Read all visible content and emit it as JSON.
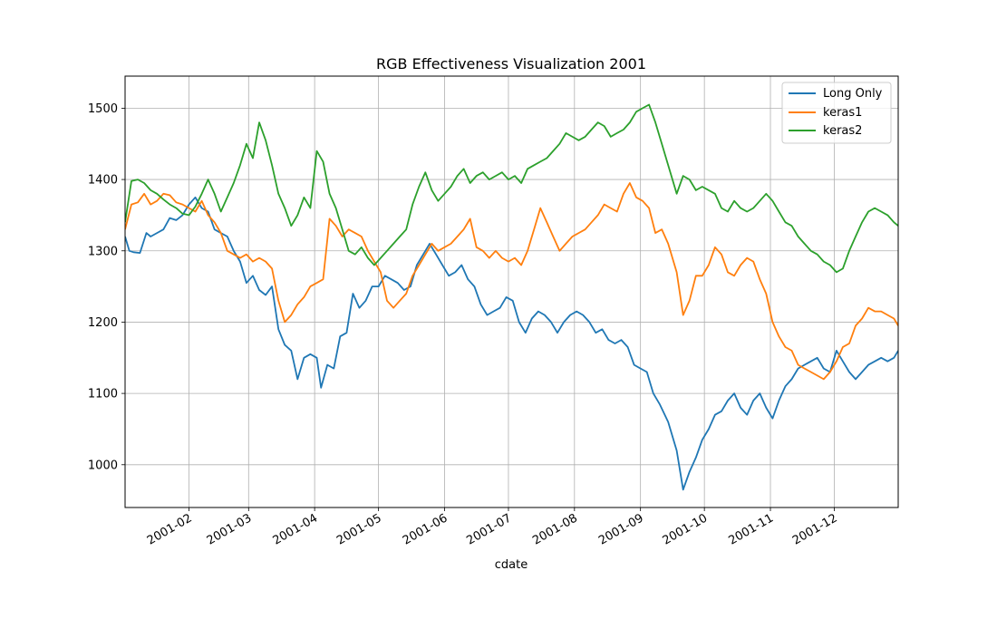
{
  "chart_data": {
    "type": "line",
    "title": "RGB Effectiveness Visualization 2001",
    "xlabel": "cdate",
    "ylabel": "",
    "x_type": "date",
    "xlim": [
      "2001-01-02",
      "2001-12-31"
    ],
    "ylim": [
      940,
      1545
    ],
    "grid": true,
    "legend_position": "top-right",
    "x_ticks": [
      "2001-02-01",
      "2001-03-01",
      "2001-04-01",
      "2001-05-01",
      "2001-06-01",
      "2001-07-01",
      "2001-08-01",
      "2001-09-01",
      "2001-10-01",
      "2001-11-01",
      "2001-12-01"
    ],
    "x_tick_labels": [
      "2001-02",
      "2001-03",
      "2001-04",
      "2001-05",
      "2001-06",
      "2001-07",
      "2001-08",
      "2001-09",
      "2001-10",
      "2001-11",
      "2001-12"
    ],
    "y_ticks": [
      1000,
      1100,
      1200,
      1300,
      1400,
      1500
    ],
    "y_tick_labels": [
      "1000",
      "1100",
      "1200",
      "1300",
      "1400",
      "1500"
    ],
    "series": [
      {
        "name": "Long Only",
        "color": "#1f77b4",
        "x": [
          "2001-01-02",
          "2001-01-04",
          "2001-01-06",
          "2001-01-09",
          "2001-01-12",
          "2001-01-14",
          "2001-01-17",
          "2001-01-20",
          "2001-01-23",
          "2001-01-26",
          "2001-01-29",
          "2001-02-01",
          "2001-02-04",
          "2001-02-07",
          "2001-02-10",
          "2001-02-13",
          "2001-02-16",
          "2001-02-19",
          "2001-02-22",
          "2001-02-25",
          "2001-02-28",
          "2001-03-03",
          "2001-03-06",
          "2001-03-09",
          "2001-03-12",
          "2001-03-15",
          "2001-03-18",
          "2001-03-21",
          "2001-03-24",
          "2001-03-27",
          "2001-03-30",
          "2001-04-02",
          "2001-04-04",
          "2001-04-07",
          "2001-04-10",
          "2001-04-13",
          "2001-04-16",
          "2001-04-19",
          "2001-04-22",
          "2001-04-25",
          "2001-04-28",
          "2001-05-01",
          "2001-05-04",
          "2001-05-07",
          "2001-05-10",
          "2001-05-13",
          "2001-05-16",
          "2001-05-19",
          "2001-05-22",
          "2001-05-25",
          "2001-05-28",
          "2001-05-31",
          "2001-06-03",
          "2001-06-06",
          "2001-06-09",
          "2001-06-12",
          "2001-06-15",
          "2001-06-18",
          "2001-06-21",
          "2001-06-24",
          "2001-06-27",
          "2001-06-30",
          "2001-07-03",
          "2001-07-06",
          "2001-07-09",
          "2001-07-12",
          "2001-07-15",
          "2001-07-18",
          "2001-07-21",
          "2001-07-24",
          "2001-07-27",
          "2001-07-30",
          "2001-08-02",
          "2001-08-05",
          "2001-08-08",
          "2001-08-11",
          "2001-08-14",
          "2001-08-17",
          "2001-08-20",
          "2001-08-23",
          "2001-08-26",
          "2001-08-29",
          "2001-09-01",
          "2001-09-04",
          "2001-09-07",
          "2001-09-10",
          "2001-09-14",
          "2001-09-18",
          "2001-09-21",
          "2001-09-24",
          "2001-09-27",
          "2001-09-30",
          "2001-10-03",
          "2001-10-06",
          "2001-10-09",
          "2001-10-12",
          "2001-10-15",
          "2001-10-18",
          "2001-10-21",
          "2001-10-24",
          "2001-10-27",
          "2001-10-30",
          "2001-11-02",
          "2001-11-05",
          "2001-11-08",
          "2001-11-11",
          "2001-11-14",
          "2001-11-17",
          "2001-11-20",
          "2001-11-23",
          "2001-11-26",
          "2001-11-29",
          "2001-12-02",
          "2001-12-05",
          "2001-12-08",
          "2001-12-11",
          "2001-12-14",
          "2001-12-17",
          "2001-12-20",
          "2001-12-23",
          "2001-12-26",
          "2001-12-29",
          "2001-12-31"
        ],
        "y": [
          1320,
          1300,
          1298,
          1297,
          1325,
          1320,
          1325,
          1330,
          1346,
          1343,
          1350,
          1365,
          1375,
          1360,
          1355,
          1330,
          1325,
          1320,
          1300,
          1285,
          1255,
          1265,
          1245,
          1238,
          1250,
          1190,
          1168,
          1160,
          1120,
          1150,
          1155,
          1150,
          1108,
          1140,
          1135,
          1180,
          1185,
          1240,
          1220,
          1230,
          1250,
          1250,
          1265,
          1260,
          1255,
          1245,
          1250,
          1280,
          1295,
          1310,
          1295,
          1280,
          1265,
          1270,
          1280,
          1260,
          1250,
          1225,
          1210,
          1215,
          1220,
          1235,
          1230,
          1200,
          1185,
          1205,
          1215,
          1210,
          1200,
          1185,
          1200,
          1210,
          1215,
          1210,
          1200,
          1185,
          1190,
          1175,
          1170,
          1175,
          1165,
          1140,
          1135,
          1130,
          1100,
          1085,
          1060,
          1020,
          965,
          990,
          1010,
          1035,
          1050,
          1070,
          1075,
          1090,
          1100,
          1080,
          1070,
          1090,
          1100,
          1080,
          1065,
          1090,
          1110,
          1120,
          1135,
          1140,
          1145,
          1150,
          1135,
          1130,
          1160,
          1145,
          1130,
          1120,
          1130,
          1140,
          1145,
          1150,
          1145,
          1150,
          1160
        ]
      },
      {
        "name": "keras1",
        "color": "#ff7f0e",
        "x": [
          "2001-01-02",
          "2001-01-05",
          "2001-01-08",
          "2001-01-11",
          "2001-01-14",
          "2001-01-17",
          "2001-01-20",
          "2001-01-23",
          "2001-01-26",
          "2001-01-29",
          "2001-02-01",
          "2001-02-04",
          "2001-02-07",
          "2001-02-10",
          "2001-02-13",
          "2001-02-16",
          "2001-02-19",
          "2001-02-22",
          "2001-02-25",
          "2001-02-28",
          "2001-03-03",
          "2001-03-06",
          "2001-03-09",
          "2001-03-12",
          "2001-03-15",
          "2001-03-18",
          "2001-03-21",
          "2001-03-24",
          "2001-03-27",
          "2001-03-30",
          "2001-04-02",
          "2001-04-05",
          "2001-04-08",
          "2001-04-11",
          "2001-04-14",
          "2001-04-17",
          "2001-04-20",
          "2001-04-23",
          "2001-04-26",
          "2001-04-29",
          "2001-05-02",
          "2001-05-05",
          "2001-05-08",
          "2001-05-11",
          "2001-05-14",
          "2001-05-17",
          "2001-05-20",
          "2001-05-23",
          "2001-05-26",
          "2001-05-29",
          "2001-06-01",
          "2001-06-04",
          "2001-06-07",
          "2001-06-10",
          "2001-06-13",
          "2001-06-16",
          "2001-06-19",
          "2001-06-22",
          "2001-06-25",
          "2001-06-28",
          "2001-07-01",
          "2001-07-04",
          "2001-07-07",
          "2001-07-10",
          "2001-07-13",
          "2001-07-16",
          "2001-07-19",
          "2001-07-22",
          "2001-07-25",
          "2001-07-28",
          "2001-07-31",
          "2001-08-03",
          "2001-08-06",
          "2001-08-09",
          "2001-08-12",
          "2001-08-15",
          "2001-08-18",
          "2001-08-21",
          "2001-08-24",
          "2001-08-27",
          "2001-08-30",
          "2001-09-02",
          "2001-09-05",
          "2001-09-08",
          "2001-09-11",
          "2001-09-14",
          "2001-09-18",
          "2001-09-21",
          "2001-09-24",
          "2001-09-27",
          "2001-09-30",
          "2001-10-03",
          "2001-10-06",
          "2001-10-09",
          "2001-10-12",
          "2001-10-15",
          "2001-10-18",
          "2001-10-21",
          "2001-10-24",
          "2001-10-27",
          "2001-10-30",
          "2001-11-02",
          "2001-11-05",
          "2001-11-08",
          "2001-11-11",
          "2001-11-14",
          "2001-11-17",
          "2001-11-20",
          "2001-11-23",
          "2001-11-26",
          "2001-11-29",
          "2001-12-02",
          "2001-12-05",
          "2001-12-08",
          "2001-12-11",
          "2001-12-14",
          "2001-12-17",
          "2001-12-20",
          "2001-12-23",
          "2001-12-26",
          "2001-12-29",
          "2001-12-31"
        ],
        "y": [
          1330,
          1365,
          1368,
          1380,
          1365,
          1370,
          1380,
          1378,
          1368,
          1365,
          1360,
          1355,
          1370,
          1350,
          1340,
          1325,
          1300,
          1295,
          1290,
          1295,
          1285,
          1290,
          1285,
          1275,
          1230,
          1200,
          1210,
          1225,
          1235,
          1250,
          1255,
          1260,
          1345,
          1335,
          1320,
          1330,
          1325,
          1320,
          1300,
          1285,
          1270,
          1230,
          1220,
          1230,
          1240,
          1265,
          1280,
          1295,
          1310,
          1300,
          1305,
          1310,
          1320,
          1330,
          1345,
          1305,
          1300,
          1290,
          1300,
          1290,
          1285,
          1290,
          1280,
          1300,
          1330,
          1360,
          1340,
          1320,
          1300,
          1310,
          1320,
          1325,
          1330,
          1340,
          1350,
          1365,
          1360,
          1355,
          1380,
          1395,
          1375,
          1370,
          1360,
          1325,
          1330,
          1310,
          1270,
          1210,
          1230,
          1265,
          1265,
          1280,
          1305,
          1295,
          1270,
          1265,
          1280,
          1290,
          1285,
          1260,
          1240,
          1200,
          1180,
          1165,
          1160,
          1140,
          1135,
          1130,
          1125,
          1120,
          1130,
          1145,
          1165,
          1170,
          1195,
          1205,
          1220,
          1215,
          1215,
          1210,
          1205,
          1195
        ]
      },
      {
        "name": "keras2",
        "color": "#2ca02c",
        "x": [
          "2001-01-02",
          "2001-01-05",
          "2001-01-08",
          "2001-01-11",
          "2001-01-14",
          "2001-01-17",
          "2001-01-20",
          "2001-01-23",
          "2001-01-26",
          "2001-01-29",
          "2001-02-01",
          "2001-02-04",
          "2001-02-07",
          "2001-02-10",
          "2001-02-13",
          "2001-02-16",
          "2001-02-19",
          "2001-02-22",
          "2001-02-25",
          "2001-02-28",
          "2001-03-03",
          "2001-03-06",
          "2001-03-09",
          "2001-03-12",
          "2001-03-15",
          "2001-03-18",
          "2001-03-21",
          "2001-03-24",
          "2001-03-27",
          "2001-03-30",
          "2001-04-02",
          "2001-04-05",
          "2001-04-08",
          "2001-04-11",
          "2001-04-14",
          "2001-04-17",
          "2001-04-20",
          "2001-04-23",
          "2001-04-26",
          "2001-04-29",
          "2001-05-02",
          "2001-05-05",
          "2001-05-08",
          "2001-05-11",
          "2001-05-14",
          "2001-05-17",
          "2001-05-20",
          "2001-05-23",
          "2001-05-26",
          "2001-05-29",
          "2001-06-01",
          "2001-06-04",
          "2001-06-07",
          "2001-06-10",
          "2001-06-13",
          "2001-06-16",
          "2001-06-19",
          "2001-06-22",
          "2001-06-25",
          "2001-06-28",
          "2001-07-01",
          "2001-07-04",
          "2001-07-07",
          "2001-07-10",
          "2001-07-13",
          "2001-07-16",
          "2001-07-19",
          "2001-07-22",
          "2001-07-25",
          "2001-07-28",
          "2001-07-31",
          "2001-08-03",
          "2001-08-06",
          "2001-08-09",
          "2001-08-12",
          "2001-08-15",
          "2001-08-18",
          "2001-08-21",
          "2001-08-24",
          "2001-08-27",
          "2001-08-30",
          "2001-09-02",
          "2001-09-05",
          "2001-09-08",
          "2001-09-11",
          "2001-09-14",
          "2001-09-18",
          "2001-09-21",
          "2001-09-24",
          "2001-09-27",
          "2001-09-30",
          "2001-10-03",
          "2001-10-06",
          "2001-10-09",
          "2001-10-12",
          "2001-10-15",
          "2001-10-18",
          "2001-10-21",
          "2001-10-24",
          "2001-10-27",
          "2001-10-30",
          "2001-11-02",
          "2001-11-05",
          "2001-11-08",
          "2001-11-11",
          "2001-11-14",
          "2001-11-17",
          "2001-11-20",
          "2001-11-23",
          "2001-11-26",
          "2001-11-29",
          "2001-12-02",
          "2001-12-05",
          "2001-12-08",
          "2001-12-11",
          "2001-12-14",
          "2001-12-17",
          "2001-12-20",
          "2001-12-23",
          "2001-12-26",
          "2001-12-29",
          "2001-12-31"
        ],
        "y": [
          1340,
          1398,
          1400,
          1395,
          1385,
          1380,
          1372,
          1365,
          1360,
          1352,
          1350,
          1362,
          1380,
          1400,
          1380,
          1355,
          1375,
          1395,
          1420,
          1450,
          1430,
          1480,
          1455,
          1420,
          1380,
          1360,
          1335,
          1350,
          1375,
          1360,
          1440,
          1425,
          1380,
          1360,
          1330,
          1300,
          1295,
          1305,
          1290,
          1280,
          1290,
          1300,
          1310,
          1320,
          1330,
          1365,
          1390,
          1410,
          1385,
          1370,
          1380,
          1390,
          1405,
          1415,
          1395,
          1405,
          1410,
          1400,
          1405,
          1410,
          1400,
          1405,
          1395,
          1415,
          1420,
          1425,
          1430,
          1440,
          1450,
          1465,
          1460,
          1455,
          1460,
          1470,
          1480,
          1475,
          1460,
          1465,
          1470,
          1480,
          1495,
          1500,
          1505,
          1480,
          1450,
          1420,
          1380,
          1405,
          1400,
          1385,
          1390,
          1385,
          1380,
          1360,
          1355,
          1370,
          1360,
          1355,
          1360,
          1370,
          1380,
          1370,
          1355,
          1340,
          1335,
          1320,
          1310,
          1300,
          1295,
          1285,
          1280,
          1270,
          1275,
          1300,
          1320,
          1340,
          1355,
          1360,
          1355,
          1350,
          1340,
          1335
        ]
      }
    ]
  }
}
